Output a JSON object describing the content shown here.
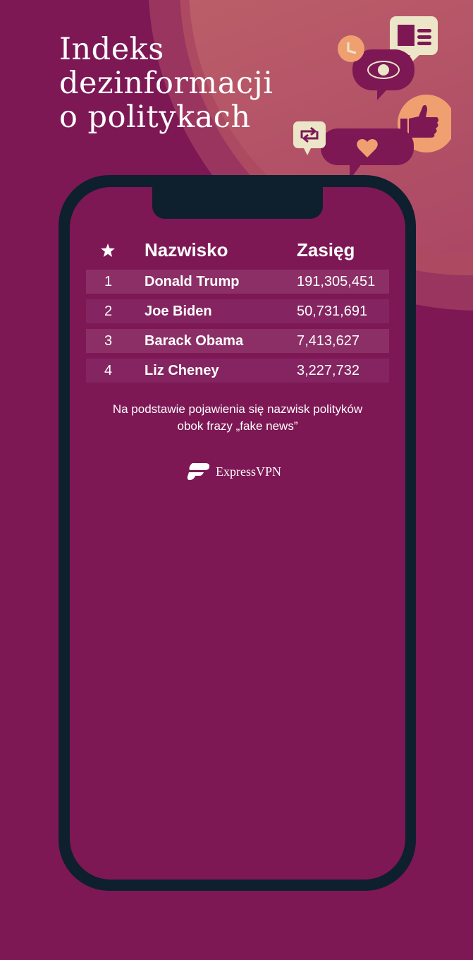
{
  "title_lines": [
    "Indeks",
    "dezinformacji",
    "o politykach"
  ],
  "table": {
    "header_icon": "star-icon",
    "headers": [
      "Nazwisko",
      "Zasięg"
    ],
    "rows": [
      {
        "rank": "1",
        "name": "Donald Trump",
        "reach": "191,305,451"
      },
      {
        "rank": "2",
        "name": "Joe Biden",
        "reach": "50,731,691"
      },
      {
        "rank": "3",
        "name": "Barack Obama",
        "reach": "7,413,627"
      },
      {
        "rank": "4",
        "name": "Liz Cheney",
        "reach": "3,227,732"
      }
    ]
  },
  "note_lines": [
    "Na podstawie pojawienia się nazwisk polityków",
    "obok frazy „fake news”"
  ],
  "brand": "ExpressVPN",
  "colors": {
    "background": "#7d1855",
    "phone": "#0e1f2e",
    "accent": "#f0a070",
    "cream": "#ece5c8"
  }
}
